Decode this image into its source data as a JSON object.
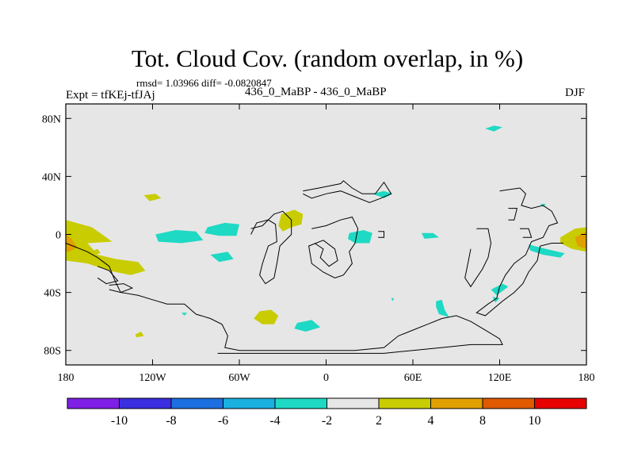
{
  "title": "Tot. Cloud Cov. (random overlap, in %)",
  "stats_line": "rmsd= 1.03966 diff= -0.0820847",
  "subtitle": "436_0_MaBP - 436_0_MaBP",
  "left_label": "Expt = tfKEj-tfJAj",
  "right_label": "DJF",
  "map": {
    "projection": "cylindrical-equidistant",
    "lon_range": [
      -180,
      180
    ],
    "lat_range": [
      -90,
      90
    ],
    "background_color": "#e6e6e6",
    "coastline_color": "#000000",
    "x_ticks": [
      {
        "lon": -180,
        "label": "180"
      },
      {
        "lon": -120,
        "label": "120W"
      },
      {
        "lon": -60,
        "label": "60W"
      },
      {
        "lon": 0,
        "label": "0"
      },
      {
        "lon": 60,
        "label": "60E"
      },
      {
        "lon": 120,
        "label": "120E"
      },
      {
        "lon": 180,
        "label": "180"
      }
    ],
    "y_ticks": [
      {
        "lat": 80,
        "label": "80N"
      },
      {
        "lat": 40,
        "label": "40N"
      },
      {
        "lat": 0,
        "label": "0"
      },
      {
        "lat": -40,
        "label": "40S"
      },
      {
        "lat": -80,
        "label": "80S"
      }
    ]
  },
  "colorbar": {
    "bins": [
      "#7f1fe6",
      "#3a2ee0",
      "#1c6fe0",
      "#1ab0e0",
      "#1ed9c4",
      "#e6e6e6",
      "#c8cc00",
      "#e0a000",
      "#e05a00",
      "#e60000"
    ],
    "labels": [
      "-10",
      "-8",
      "-6",
      "-4",
      "-2",
      "2",
      "4",
      "8",
      "10"
    ]
  },
  "anomaly_regions": [
    {
      "level": 4,
      "color": "#c8cc00",
      "points": [
        [
          -180,
          10
        ],
        [
          -162,
          5
        ],
        [
          -152,
          -2
        ],
        [
          -148,
          -5
        ],
        [
          -165,
          -6
        ],
        [
          -158,
          -14
        ],
        [
          -145,
          -17
        ],
        [
          -130,
          -19
        ],
        [
          -125,
          -25
        ],
        [
          -135,
          -28
        ],
        [
          -150,
          -25
        ],
        [
          -165,
          -20
        ],
        [
          -180,
          -18
        ]
      ]
    },
    {
      "level": 8,
      "color": "#e0a000",
      "points": [
        [
          -180,
          0
        ],
        [
          -176,
          -3
        ],
        [
          -172,
          -9
        ],
        [
          -178,
          -12
        ],
        [
          -180,
          -12
        ]
      ]
    },
    {
      "level": 4,
      "color": "#c8cc00",
      "points": [
        [
          -163,
          -12
        ],
        [
          -158,
          -10
        ],
        [
          -156,
          -13
        ],
        [
          -161,
          -14
        ]
      ]
    },
    {
      "level": 4,
      "color": "#c8cc00",
      "points": [
        [
          -126,
          27
        ],
        [
          -118,
          28
        ],
        [
          -114,
          25
        ],
        [
          -122,
          23
        ]
      ]
    },
    {
      "level": 4,
      "color": "#c8cc00",
      "points": [
        [
          -132,
          -69
        ],
        [
          -128,
          -67
        ],
        [
          -126,
          -70
        ],
        [
          -131,
          -71
        ]
      ]
    },
    {
      "level": 4,
      "color": "#c8cc00",
      "points": [
        [
          -46,
          -53
        ],
        [
          -38,
          -52
        ],
        [
          -33,
          -56
        ],
        [
          -36,
          -62
        ],
        [
          -44,
          -62
        ],
        [
          -50,
          -58
        ]
      ]
    },
    {
      "level": 4,
      "color": "#c8cc00",
      "points": [
        [
          -31,
          14
        ],
        [
          -22,
          17
        ],
        [
          -16,
          14
        ],
        [
          -17,
          7
        ],
        [
          -24,
          5
        ],
        [
          -30,
          2
        ],
        [
          -33,
          6
        ]
      ]
    },
    {
      "level": 4,
      "color": "#c8cc00",
      "points": [
        [
          162,
          -2
        ],
        [
          172,
          4
        ],
        [
          180,
          5
        ],
        [
          180,
          -12
        ],
        [
          170,
          -10
        ],
        [
          162,
          -6
        ]
      ]
    },
    {
      "level": 8,
      "color": "#e0a000",
      "points": [
        [
          172,
          -2
        ],
        [
          180,
          2
        ],
        [
          180,
          -10
        ],
        [
          174,
          -8
        ]
      ]
    },
    {
      "level": -4,
      "color": "#1ed9c4",
      "points": [
        [
          -118,
          0
        ],
        [
          -104,
          3
        ],
        [
          -90,
          2
        ],
        [
          -85,
          -4
        ],
        [
          -100,
          -6
        ],
        [
          -116,
          -5
        ]
      ]
    },
    {
      "level": -4,
      "color": "#1ed9c4",
      "points": [
        [
          -82,
          5
        ],
        [
          -70,
          8
        ],
        [
          -60,
          7
        ],
        [
          -62,
          -1
        ],
        [
          -74,
          -1
        ],
        [
          -84,
          1
        ]
      ]
    },
    {
      "level": -4,
      "color": "#1ed9c4",
      "points": [
        [
          -80,
          -14
        ],
        [
          -68,
          -12
        ],
        [
          -64,
          -17
        ],
        [
          -74,
          -19
        ]
      ]
    },
    {
      "level": -4,
      "color": "#1ed9c4",
      "points": [
        [
          32,
          28
        ],
        [
          40,
          30
        ],
        [
          46,
          28
        ],
        [
          40,
          25
        ]
      ]
    },
    {
      "level": -4,
      "color": "#1ed9c4",
      "points": [
        [
          16,
          1
        ],
        [
          26,
          3
        ],
        [
          32,
          1
        ],
        [
          30,
          -6
        ],
        [
          20,
          -6
        ],
        [
          15,
          -3
        ]
      ]
    },
    {
      "level": -4,
      "color": "#1ed9c4",
      "points": [
        [
          66,
          1
        ],
        [
          74,
          1
        ],
        [
          78,
          -2
        ],
        [
          68,
          -3
        ]
      ]
    },
    {
      "level": -4,
      "color": "#1ed9c4",
      "points": [
        [
          110,
          73
        ],
        [
          116,
          75
        ],
        [
          122,
          74
        ],
        [
          116,
          71
        ]
      ]
    },
    {
      "level": -4,
      "color": "#1ed9c4",
      "points": [
        [
          140,
          -7
        ],
        [
          152,
          -10
        ],
        [
          165,
          -13
        ],
        [
          162,
          -16
        ],
        [
          150,
          -14
        ],
        [
          141,
          -11
        ]
      ]
    },
    {
      "level": -4,
      "color": "#1ed9c4",
      "points": [
        [
          -20,
          -61
        ],
        [
          -10,
          -59
        ],
        [
          -4,
          -64
        ],
        [
          -14,
          -67
        ],
        [
          -22,
          -65
        ]
      ]
    },
    {
      "level": -4,
      "color": "#1ed9c4",
      "points": [
        [
          76,
          -46
        ],
        [
          80,
          -45
        ],
        [
          82,
          -52
        ],
        [
          85,
          -57
        ],
        [
          78,
          -55
        ],
        [
          76,
          -50
        ]
      ]
    },
    {
      "level": -4,
      "color": "#1ed9c4",
      "points": [
        [
          114,
          -38
        ],
        [
          122,
          -34
        ],
        [
          126,
          -36
        ],
        [
          118,
          -42
        ]
      ]
    },
    {
      "level": -4,
      "color": "#1ed9c4",
      "points": [
        [
          115,
          -43
        ],
        [
          120,
          -44
        ],
        [
          117,
          -47
        ]
      ]
    },
    {
      "level": -4,
      "color": "#1ed9c4",
      "points": [
        [
          148,
          21
        ],
        [
          152,
          21
        ],
        [
          150,
          19
        ]
      ]
    },
    {
      "level": -4,
      "color": "#1ed9c4",
      "points": [
        [
          45,
          -44
        ],
        [
          47,
          -44
        ],
        [
          46,
          -46
        ]
      ]
    },
    {
      "level": -4,
      "color": "#1ed9c4",
      "points": [
        [
          -100,
          -54
        ],
        [
          -96,
          -54
        ],
        [
          -98,
          -56
        ]
      ]
    }
  ],
  "coastlines": [
    [
      [
        -180,
        -6
      ],
      [
        -165,
        -12
      ],
      [
        -158,
        -16
      ],
      [
        -150,
        -22
      ],
      [
        -146,
        -32
      ],
      [
        -142,
        -40
      ],
      [
        -130,
        -42
      ],
      [
        -120,
        -45
      ],
      [
        -110,
        -48
      ],
      [
        -98,
        -48
      ],
      [
        -90,
        -55
      ],
      [
        -80,
        -58
      ],
      [
        -72,
        -62
      ],
      [
        -68,
        -70
      ],
      [
        -70,
        -78
      ],
      [
        -60,
        -80
      ],
      [
        -40,
        -80
      ],
      [
        -20,
        -80
      ],
      [
        0,
        -80
      ],
      [
        20,
        -80
      ],
      [
        40,
        -78
      ],
      [
        50,
        -70
      ],
      [
        60,
        -66
      ],
      [
        70,
        -62
      ],
      [
        80,
        -58
      ],
      [
        90,
        -56
      ],
      [
        100,
        -60
      ],
      [
        110,
        -66
      ],
      [
        120,
        -72
      ],
      [
        122,
        -76
      ],
      [
        100,
        -76
      ],
      [
        80,
        -78
      ],
      [
        60,
        -80
      ],
      [
        40,
        -82
      ],
      [
        20,
        -82
      ],
      [
        -20,
        -82
      ],
      [
        -50,
        -82
      ],
      [
        -75,
        -82
      ]
    ],
    [
      [
        -158,
        -22
      ],
      [
        -150,
        -25
      ],
      [
        -144,
        -32
      ],
      [
        -152,
        -34
      ],
      [
        -158,
        -30
      ]
    ],
    [
      [
        -150,
        -35
      ],
      [
        -140,
        -34
      ],
      [
        -134,
        -37
      ],
      [
        -142,
        -40
      ],
      [
        -150,
        -38
      ]
    ],
    [
      [
        -52,
        0
      ],
      [
        -48,
        8
      ],
      [
        -40,
        10
      ],
      [
        -35,
        7
      ],
      [
        -34,
        -5
      ],
      [
        -40,
        -8
      ],
      [
        -44,
        -20
      ],
      [
        -46,
        -28
      ],
      [
        -42,
        -34
      ],
      [
        -36,
        -30
      ],
      [
        -34,
        -20
      ],
      [
        -32,
        -8
      ],
      [
        -24,
        0
      ],
      [
        -24,
        10
      ],
      [
        -30,
        16
      ],
      [
        -36,
        14
      ],
      [
        -44,
        6
      ],
      [
        -52,
        4
      ]
    ],
    [
      [
        -16,
        30
      ],
      [
        -5,
        32
      ],
      [
        10,
        35
      ],
      [
        12,
        37
      ],
      [
        18,
        32
      ],
      [
        25,
        28
      ],
      [
        34,
        28
      ],
      [
        40,
        36
      ],
      [
        45,
        28
      ],
      [
        38,
        25
      ],
      [
        30,
        22
      ],
      [
        20,
        26
      ],
      [
        10,
        30
      ],
      [
        0,
        28
      ],
      [
        -10,
        25
      ],
      [
        -16,
        28
      ]
    ],
    [
      [
        -10,
        4
      ],
      [
        0,
        6
      ],
      [
        10,
        10
      ],
      [
        18,
        12
      ],
      [
        22,
        4
      ],
      [
        20,
        -6
      ],
      [
        16,
        -12
      ],
      [
        18,
        -20
      ],
      [
        12,
        -28
      ],
      [
        6,
        -30
      ],
      [
        -2,
        -26
      ],
      [
        -10,
        -20
      ],
      [
        -12,
        -8
      ],
      [
        -2,
        -4
      ],
      [
        6,
        -10
      ],
      [
        8,
        -18
      ],
      [
        2,
        -22
      ],
      [
        -4,
        -16
      ],
      [
        -2,
        -10
      ],
      [
        -8,
        -6
      ]
    ],
    [
      [
        120,
        30
      ],
      [
        134,
        32
      ],
      [
        138,
        28
      ],
      [
        135,
        20
      ],
      [
        142,
        18
      ],
      [
        150,
        20
      ],
      [
        156,
        16
      ],
      [
        160,
        8
      ],
      [
        154,
        6
      ],
      [
        150,
        -2
      ],
      [
        142,
        -5
      ],
      [
        138,
        -14
      ],
      [
        130,
        -20
      ],
      [
        124,
        -28
      ],
      [
        120,
        -36
      ],
      [
        118,
        -44
      ],
      [
        112,
        -48
      ],
      [
        104,
        -54
      ],
      [
        110,
        -56
      ],
      [
        122,
        -46
      ],
      [
        130,
        -40
      ],
      [
        136,
        -34
      ],
      [
        140,
        -26
      ],
      [
        146,
        -18
      ],
      [
        148,
        -8
      ],
      [
        156,
        -6
      ],
      [
        164,
        -6
      ]
    ],
    [
      [
        126,
        18
      ],
      [
        132,
        18
      ],
      [
        130,
        10
      ],
      [
        126,
        10
      ]
    ],
    [
      [
        104,
        4
      ],
      [
        112,
        4
      ],
      [
        114,
        -6
      ],
      [
        112,
        -16
      ],
      [
        108,
        -24
      ],
      [
        104,
        -30
      ],
      [
        100,
        -36
      ],
      [
        96,
        -30
      ],
      [
        98,
        -20
      ],
      [
        100,
        -10
      ]
    ],
    [
      [
        134,
        4
      ],
      [
        140,
        4
      ],
      [
        142,
        -2
      ],
      [
        136,
        -2
      ]
    ],
    [
      [
        36,
        2
      ],
      [
        40,
        2
      ],
      [
        40,
        -2
      ],
      [
        36,
        -2
      ]
    ]
  ]
}
